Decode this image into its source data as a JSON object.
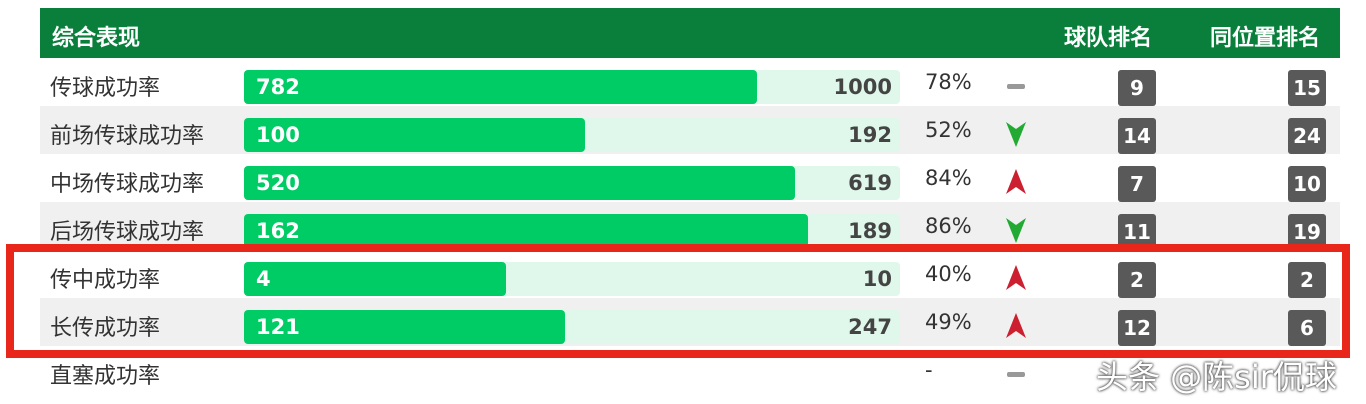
{
  "header": {
    "title": "综合表现",
    "col_team": "球队排名",
    "col_position": "同位置排名"
  },
  "rows": [
    {
      "label": "传球成功率",
      "value": "782",
      "total": "1000",
      "pct": "78%",
      "trend": "flat",
      "team_rank": "9",
      "position_rank": "15",
      "ratio": 0.782
    },
    {
      "label": "前场传球成功率",
      "value": "100",
      "total": "192",
      "pct": "52%",
      "trend": "down",
      "team_rank": "14",
      "position_rank": "24",
      "ratio": 0.52
    },
    {
      "label": "中场传球成功率",
      "value": "520",
      "total": "619",
      "pct": "84%",
      "trend": "up",
      "team_rank": "7",
      "position_rank": "10",
      "ratio": 0.84
    },
    {
      "label": "后场传球成功率",
      "value": "162",
      "total": "189",
      "pct": "86%",
      "trend": "down",
      "team_rank": "11",
      "position_rank": "19",
      "ratio": 0.86
    },
    {
      "label": "传中成功率",
      "value": "4",
      "total": "10",
      "pct": "40%",
      "trend": "up",
      "team_rank": "2",
      "position_rank": "2",
      "ratio": 0.4
    },
    {
      "label": "长传成功率",
      "value": "121",
      "total": "247",
      "pct": "49%",
      "trend": "up",
      "team_rank": "12",
      "position_rank": "6",
      "ratio": 0.49
    },
    {
      "label": "直塞成功率",
      "value": "",
      "total": "",
      "pct": "-",
      "trend": "flat",
      "team_rank": "",
      "position_rank": "",
      "ratio": 0
    }
  ],
  "colors": {
    "header_bg": "#0a7f3c",
    "bar_fill": "#00cc66",
    "bar_track": "#e0f8eb",
    "trend_up": "#cc1f2f",
    "trend_down": "#22aa33",
    "trend_flat": "#999999",
    "highlight": "#e8261a"
  },
  "watermark": "头条 @陈sir侃球"
}
